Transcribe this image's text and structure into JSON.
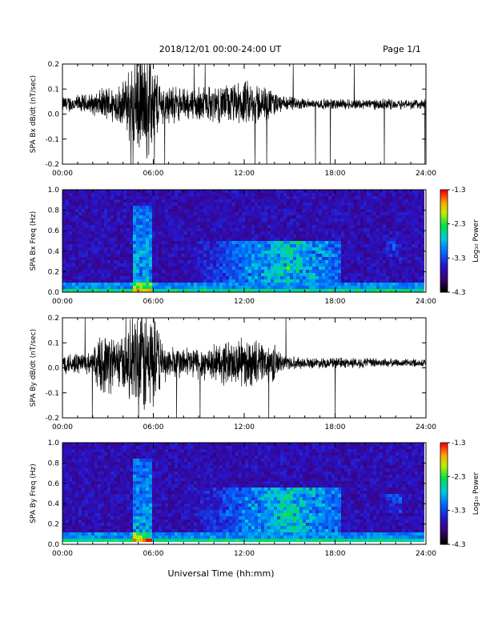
{
  "header": {
    "title": "2018/12/01   00:00-24:00 UT",
    "page": "Page 1/1"
  },
  "xlabel": "Universal Time (hh:mm)",
  "colorbar": {
    "label": "Log₁₀ Power",
    "ticks": [
      "-1.3",
      "-2.3",
      "-3.3",
      "-4.3"
    ],
    "range": [
      -4.3,
      -1.3
    ]
  },
  "chart_data": [
    {
      "type": "line",
      "ylabel": "SPA Bx dB/dt (nT/sec)",
      "xlim": [
        0,
        24
      ],
      "ylim": [
        -0.2,
        0.2
      ],
      "xticks": [
        "00:00",
        "06:00",
        "12:00",
        "18:00",
        "24:00"
      ],
      "yticks": [
        "0.2",
        "0.1",
        "0.0",
        "-0.1",
        "-0.2"
      ],
      "amplitude_envelope": {
        "x": [
          0,
          2,
          3,
          4,
          4.7,
          5.3,
          5.9,
          6.5,
          8,
          10,
          11.5,
          12.5,
          14,
          14.5,
          16,
          18,
          20,
          22,
          24
        ],
        "amp": [
          0.03,
          0.04,
          0.07,
          0.08,
          0.2,
          0.22,
          0.2,
          0.08,
          0.06,
          0.07,
          0.08,
          0.09,
          0.05,
          0.03,
          0.02,
          0.02,
          0.02,
          0.02,
          0.02
        ]
      },
      "baseline": 0.04
    },
    {
      "type": "heatmap",
      "ylabel": "SPA Bx Freq (Hz)",
      "xlim": [
        0,
        24
      ],
      "ylim": [
        0,
        1
      ],
      "xticks": [
        "00:00",
        "06:00",
        "12:00",
        "18:00",
        "24:00"
      ],
      "yticks": [
        "1.0",
        "0.8",
        "0.6",
        "0.4",
        "0.2",
        "0.0"
      ],
      "zlabel": "Log₁₀ Power",
      "zlim": [
        -4.3,
        -1.3
      ],
      "features": {
        "active_band_hours": [
          8.5,
          18.5
        ],
        "active_band_freq": [
          0.1,
          0.5
        ],
        "burst_hours": [
          4.7,
          5.9
        ]
      }
    },
    {
      "type": "line",
      "ylabel": "SPA By dB/dt (nT/sec)",
      "xlim": [
        0,
        24
      ],
      "ylim": [
        -0.2,
        0.2
      ],
      "xticks": [
        "00:00",
        "06:00",
        "12:00",
        "18:00",
        "24:00"
      ],
      "yticks": [
        "0.2",
        "0.1",
        "0.0",
        "-0.1",
        "-0.2"
      ],
      "amplitude_envelope": {
        "x": [
          0,
          2,
          2.7,
          4,
          4.8,
          5.5,
          6,
          6.6,
          8,
          10,
          11,
          12.5,
          14,
          14.5,
          16,
          18,
          20,
          22,
          24
        ],
        "amp": [
          0.04,
          0.05,
          0.12,
          0.1,
          0.2,
          0.22,
          0.2,
          0.07,
          0.06,
          0.07,
          0.09,
          0.09,
          0.07,
          0.03,
          0.02,
          0.02,
          0.02,
          0.015,
          0.015
        ]
      },
      "baseline": 0.02
    },
    {
      "type": "heatmap",
      "ylabel": "SPA By Freq (Hz)",
      "xlim": [
        0,
        24
      ],
      "ylim": [
        0,
        1
      ],
      "xticks": [
        "00:00",
        "06:00",
        "12:00",
        "18:00",
        "24:00"
      ],
      "yticks": [
        "1.0",
        "0.8",
        "0.6",
        "0.4",
        "0.2",
        "0.0"
      ],
      "zlabel": "Log₁₀ Power",
      "zlim": [
        -4.3,
        -1.3
      ],
      "features": {
        "active_band_hours": [
          8.5,
          18.5
        ],
        "active_band_freq": [
          0.1,
          0.55
        ],
        "burst_hours": [
          4.7,
          5.9
        ]
      }
    }
  ]
}
